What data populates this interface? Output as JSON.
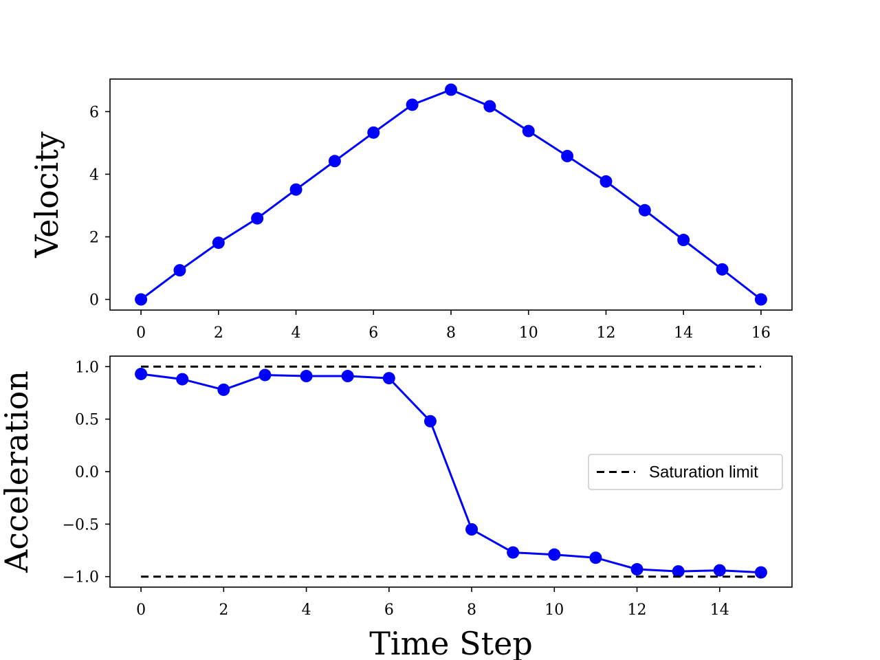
{
  "chart_data": [
    {
      "type": "line",
      "xlabel": "",
      "ylabel": "Velocity",
      "xlim": [
        -0.8,
        16.8
      ],
      "ylim": [
        -0.34,
        7.04
      ],
      "xticks": [
        0,
        2,
        4,
        6,
        8,
        10,
        12,
        14,
        16
      ],
      "xtick_labels": [
        "0",
        "2",
        "4",
        "6",
        "8",
        "10",
        "12",
        "14",
        "16"
      ],
      "yticks": [
        0,
        2,
        4,
        6
      ],
      "ytick_labels": [
        "0",
        "2",
        "4",
        "6"
      ],
      "grid": false,
      "series": [
        {
          "color": "#0000ff",
          "marker": "circle",
          "x": [
            0,
            1,
            2,
            3,
            4,
            5,
            6,
            7,
            8,
            9,
            10,
            11,
            12,
            13,
            14,
            15,
            16
          ],
          "values": [
            0,
            0.93,
            1.81,
            2.59,
            3.51,
            4.42,
            5.33,
            6.22,
            6.7,
            6.17,
            5.38,
            4.58,
            3.77,
            2.85,
            1.9,
            0.96,
            0
          ]
        }
      ]
    },
    {
      "type": "line",
      "xlabel": "Time Step",
      "ylabel": "Acceleration",
      "xlim": [
        -0.75,
        15.75
      ],
      "ylim": [
        -1.1,
        1.1
      ],
      "xticks": [
        0,
        2,
        4,
        6,
        8,
        10,
        12,
        14
      ],
      "xtick_labels": [
        "0",
        "2",
        "4",
        "6",
        "8",
        "10",
        "12",
        "14"
      ],
      "yticks": [
        1.0,
        0.5,
        0.0,
        -0.5,
        -1.0
      ],
      "ytick_labels": [
        "1.0",
        "0.5",
        "0.0",
        "−0.5",
        "−1.0"
      ],
      "grid": false,
      "legend": {
        "position": "center-right",
        "entries": [
          "Saturation limit"
        ]
      },
      "series": [
        {
          "color": "#0000ff",
          "marker": "circle",
          "x": [
            0,
            1,
            2,
            3,
            4,
            5,
            6,
            7,
            8,
            9,
            10,
            11,
            12,
            13,
            14,
            15
          ],
          "values": [
            0.93,
            0.88,
            0.78,
            0.92,
            0.91,
            0.91,
            0.89,
            0.48,
            -0.55,
            -0.77,
            -0.79,
            -0.82,
            -0.93,
            -0.95,
            -0.94,
            -0.96
          ]
        },
        {
          "name": "Saturation limit",
          "color": "#000000",
          "style": "dashed",
          "x": [
            0,
            15
          ],
          "values": [
            1.0,
            1.0
          ]
        },
        {
          "color": "#000000",
          "style": "dashed",
          "x": [
            0,
            15
          ],
          "values": [
            -1.0,
            -1.0
          ]
        }
      ]
    }
  ]
}
